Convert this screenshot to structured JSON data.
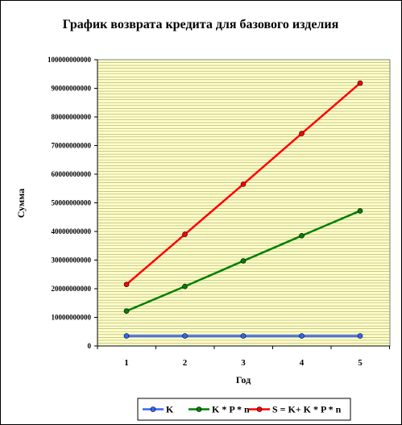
{
  "chart_data": {
    "type": "line",
    "title": "График возврата кредита для базового изделия",
    "xlabel": "Год",
    "ylabel": "Сумма",
    "categories": [
      "1",
      "2",
      "3",
      "4",
      "5"
    ],
    "ylim": [
      0,
      100000000000
    ],
    "yticks": [
      0,
      10000000000,
      20000000000,
      30000000000,
      40000000000,
      50000000000,
      60000000000,
      70000000000,
      80000000000,
      90000000000,
      100000000000
    ],
    "ytick_labels": [
      "0",
      "10000000000",
      "20000000000",
      "30000000000",
      "40000000000",
      "50000000000",
      "60000000000",
      "70000000000",
      "80000000000",
      "90000000000",
      "100000000000"
    ],
    "grid": true,
    "plot_background": "#ffffcc",
    "grid_color": "#a8a860",
    "legend_position": "bottom",
    "series": [
      {
        "name": "K",
        "color": "#3366ff",
        "values": [
          3500000000,
          3500000000,
          3500000000,
          3500000000,
          3500000000
        ]
      },
      {
        "name": "K * P * n",
        "color": "#008000",
        "values": [
          12200000000,
          20800000000,
          29700000000,
          38500000000,
          47200000000
        ]
      },
      {
        "name": "S = K+ K * P * n",
        "color": "#ff0000",
        "values": [
          21500000000,
          39000000000,
          56500000000,
          74200000000,
          91800000000
        ]
      }
    ]
  }
}
